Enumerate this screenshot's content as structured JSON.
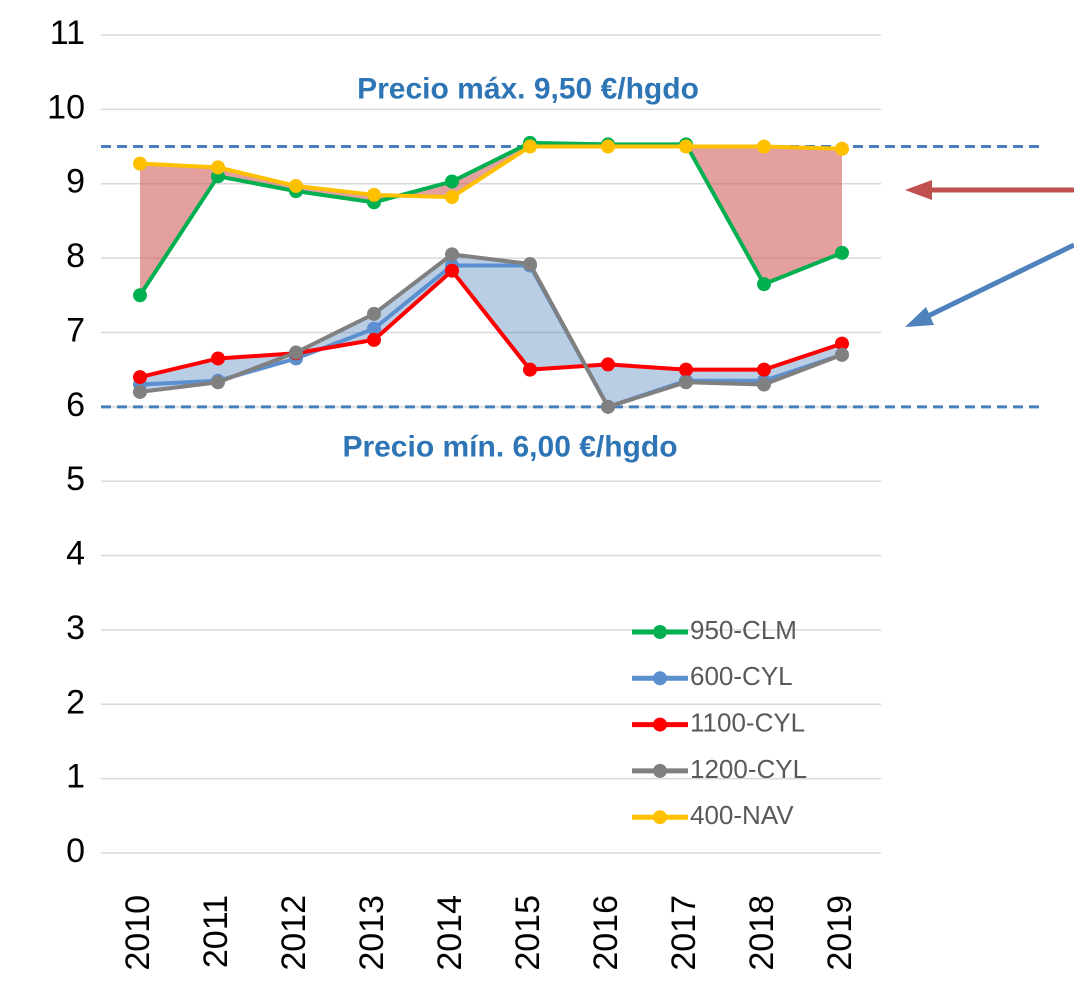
{
  "chart_data": {
    "type": "line",
    "categories": [
      "2010",
      "2011",
      "2012",
      "2013",
      "2014",
      "2015",
      "2016",
      "2017",
      "2018",
      "2019"
    ],
    "series": [
      {
        "name": "950-CLM",
        "color": "#00b050",
        "values": [
          7.5,
          9.1,
          8.9,
          8.75,
          9.03,
          9.55,
          9.53,
          9.53,
          7.65,
          8.07
        ]
      },
      {
        "name": "600-CYL",
        "color": "#5b8fd0",
        "values": [
          6.3,
          6.35,
          6.65,
          7.05,
          7.9,
          7.9,
          6.0,
          6.35,
          6.35,
          6.7
        ]
      },
      {
        "name": "1100-CYL",
        "color": "#ff0000",
        "values": [
          6.4,
          6.65,
          6.72,
          6.9,
          7.83,
          6.5,
          6.57,
          6.5,
          6.5,
          6.85
        ]
      },
      {
        "name": "1200-CYL",
        "color": "#808080",
        "values": [
          6.2,
          6.33,
          6.73,
          7.25,
          8.05,
          7.92,
          6.0,
          6.33,
          6.3,
          6.7
        ]
      },
      {
        "name": "400-NAV",
        "color": "#ffc000",
        "values": [
          9.27,
          9.22,
          8.97,
          8.85,
          8.82,
          9.5,
          9.5,
          9.5,
          9.5,
          9.47
        ]
      }
    ],
    "reference_lines": [
      {
        "value": 9.5,
        "label": "Precio máx. 9,50 €/hgdo"
      },
      {
        "value": 6,
        "label": "Precio mín. 6,00 €/hgdo"
      }
    ],
    "ylim": [
      0,
      11
    ],
    "yticks": [
      0,
      1,
      2,
      3,
      4,
      5,
      6,
      7,
      8,
      9,
      10,
      11
    ],
    "grid": true,
    "legend": "lower right"
  }
}
